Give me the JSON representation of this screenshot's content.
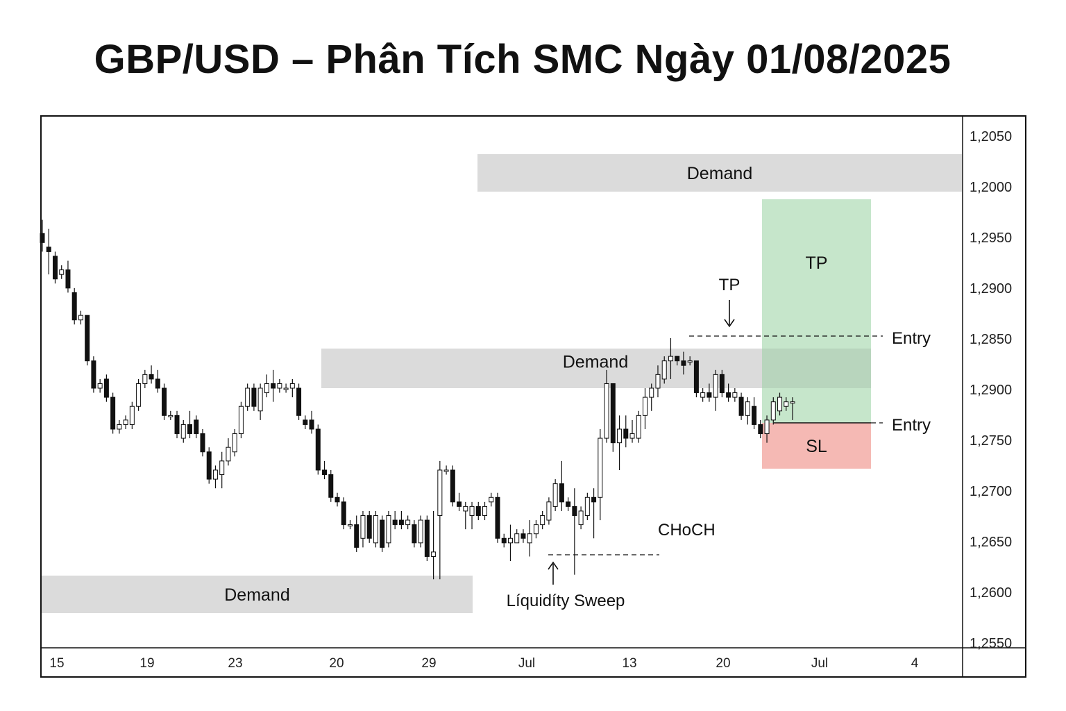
{
  "chart_data": {
    "type": "candlestick",
    "title": "GBP/USD – Phân Tích SMC Ngày 01/08/2025",
    "y_axis": {
      "ticks": [
        "1,2050",
        "1,2000",
        "1,2950",
        "1,2900",
        "1,2850",
        "1,2900",
        "1,2750",
        "1,2700",
        "1,2650",
        "1,2600",
        "1,2550"
      ],
      "scale": [
        1.2545,
        1.206
      ],
      "ylim": [
        1.2545,
        1.3102
      ]
    },
    "x_axis": {
      "ticks": [
        "15",
        "19",
        "23",
        "20",
        "29",
        "Jul",
        "13",
        "20",
        "Jul",
        "4"
      ]
    },
    "grid": false,
    "candles": [
      [
        1.2995,
        1.301,
        1.2975,
        1.2985
      ],
      [
        1.298,
        1.3,
        1.295,
        1.2975
      ],
      [
        1.297,
        1.2975,
        1.294,
        1.2945
      ],
      [
        1.295,
        1.296,
        1.2945,
        1.2955
      ],
      [
        1.2955,
        1.2965,
        1.293,
        1.2935
      ],
      [
        1.293,
        1.2935,
        1.2895,
        1.29
      ],
      [
        1.29,
        1.291,
        1.2895,
        1.2905
      ],
      [
        1.2905,
        1.2905,
        1.285,
        1.2855
      ],
      [
        1.2855,
        1.286,
        1.282,
        1.2825
      ],
      [
        1.2825,
        1.2835,
        1.282,
        1.283
      ],
      [
        1.2835,
        1.284,
        1.281,
        1.2815
      ],
      [
        1.2815,
        1.282,
        1.2775,
        1.278
      ],
      [
        1.278,
        1.279,
        1.2775,
        1.2785
      ],
      [
        1.2785,
        1.2795,
        1.278,
        1.279
      ],
      [
        1.2785,
        1.281,
        1.278,
        1.2805
      ],
      [
        1.2805,
        1.2835,
        1.28,
        1.283
      ],
      [
        1.283,
        1.2845,
        1.2825,
        1.284
      ],
      [
        1.284,
        1.285,
        1.283,
        1.2835
      ],
      [
        1.2835,
        1.2845,
        1.282,
        1.2825
      ],
      [
        1.2825,
        1.283,
        1.279,
        1.2795
      ],
      [
        1.2795,
        1.28,
        1.279,
        1.2795
      ],
      [
        1.2795,
        1.28,
        1.277,
        1.2775
      ],
      [
        1.277,
        1.279,
        1.2765,
        1.2785
      ],
      [
        1.2785,
        1.28,
        1.277,
        1.2775
      ],
      [
        1.279,
        1.2795,
        1.277,
        1.2775
      ],
      [
        1.2775,
        1.278,
        1.275,
        1.2755
      ],
      [
        1.2755,
        1.276,
        1.272,
        1.2725
      ],
      [
        1.2725,
        1.274,
        1.2715,
        1.2735
      ],
      [
        1.273,
        1.2755,
        1.2715,
        1.2745
      ],
      [
        1.2745,
        1.277,
        1.274,
        1.276
      ],
      [
        1.2755,
        1.278,
        1.275,
        1.2775
      ],
      [
        1.2775,
        1.281,
        1.277,
        1.2805
      ],
      [
        1.2805,
        1.283,
        1.28,
        1.2825
      ],
      [
        1.2825,
        1.283,
        1.28,
        1.2805
      ],
      [
        1.28,
        1.283,
        1.279,
        1.2825
      ],
      [
        1.282,
        1.284,
        1.2815,
        1.283
      ],
      [
        1.283,
        1.2845,
        1.281,
        1.2825
      ],
      [
        1.2825,
        1.2835,
        1.282,
        1.283
      ],
      [
        1.2825,
        1.283,
        1.282,
        1.2825
      ],
      [
        1.2825,
        1.2835,
        1.2815,
        1.283
      ],
      [
        1.2825,
        1.283,
        1.279,
        1.2795
      ],
      [
        1.279,
        1.2795,
        1.278,
        1.2785
      ],
      [
        1.279,
        1.28,
        1.2775,
        1.278
      ],
      [
        1.278,
        1.2785,
        1.273,
        1.2735
      ],
      [
        1.2735,
        1.2745,
        1.2725,
        1.273
      ],
      [
        1.273,
        1.2735,
        1.27,
        1.2705
      ],
      [
        1.2705,
        1.271,
        1.2695,
        1.27
      ],
      [
        1.27,
        1.2705,
        1.267,
        1.2675
      ],
      [
        1.2675,
        1.268,
        1.267,
        1.2675
      ],
      [
        1.2675,
        1.2685,
        1.2645,
        1.265
      ],
      [
        1.266,
        1.269,
        1.265,
        1.2685
      ],
      [
        1.2685,
        1.269,
        1.2655,
        1.266
      ],
      [
        1.2655,
        1.269,
        1.265,
        1.2685
      ],
      [
        1.268,
        1.2685,
        1.2645,
        1.265
      ],
      [
        1.2655,
        1.269,
        1.265,
        1.2685
      ],
      [
        1.268,
        1.269,
        1.267,
        1.2675
      ],
      [
        1.268,
        1.269,
        1.267,
        1.2675
      ],
      [
        1.2675,
        1.2685,
        1.267,
        1.268
      ],
      [
        1.2675,
        1.268,
        1.265,
        1.2655
      ],
      [
        1.2655,
        1.2685,
        1.265,
        1.268
      ],
      [
        1.268,
        1.2685,
        1.2635,
        1.264
      ],
      [
        1.264,
        1.269,
        1.2615,
        1.2645
      ],
      [
        1.2685,
        1.2745,
        1.2615,
        1.2735
      ],
      [
        1.2735,
        1.274,
        1.273,
        1.2735
      ],
      [
        1.2735,
        1.274,
        1.2695,
        1.27
      ],
      [
        1.27,
        1.271,
        1.269,
        1.2695
      ],
      [
        1.269,
        1.27,
        1.267,
        1.2695
      ],
      [
        1.2685,
        1.27,
        1.267,
        1.2695
      ],
      [
        1.2695,
        1.27,
        1.268,
        1.2685
      ],
      [
        1.2685,
        1.27,
        1.268,
        1.2695
      ],
      [
        1.27,
        1.271,
        1.2695,
        1.2705
      ],
      [
        1.2705,
        1.271,
        1.2655,
        1.266
      ],
      [
        1.266,
        1.2665,
        1.265,
        1.2655
      ],
      [
        1.2655,
        1.2675,
        1.2635,
        1.266
      ],
      [
        1.2655,
        1.267,
        1.2655,
        1.2665
      ],
      [
        1.2665,
        1.267,
        1.2655,
        1.266
      ],
      [
        1.2655,
        1.268,
        1.264,
        1.2665
      ],
      [
        1.2665,
        1.268,
        1.266,
        1.2675
      ],
      [
        1.2675,
        1.269,
        1.267,
        1.2685
      ],
      [
        1.268,
        1.2705,
        1.2675,
        1.27
      ],
      [
        1.2695,
        1.2725,
        1.269,
        1.272
      ],
      [
        1.272,
        1.2745,
        1.269,
        1.27
      ],
      [
        1.27,
        1.2705,
        1.269,
        1.2695
      ],
      [
        1.2695,
        1.2715,
        1.262,
        1.2685
      ],
      [
        1.2675,
        1.2695,
        1.267,
        1.269
      ],
      [
        1.2685,
        1.271,
        1.268,
        1.2705
      ],
      [
        1.2705,
        1.2715,
        1.266,
        1.27
      ],
      [
        1.2705,
        1.278,
        1.268,
        1.277
      ],
      [
        1.277,
        1.2845,
        1.2765,
        1.283
      ],
      [
        1.283,
        1.283,
        1.2755,
        1.2765
      ],
      [
        1.2765,
        1.2795,
        1.2735,
        1.278
      ],
      [
        1.278,
        1.2795,
        1.276,
        1.277
      ],
      [
        1.277,
        1.279,
        1.2765,
        1.2775
      ],
      [
        1.277,
        1.28,
        1.2765,
        1.2795
      ],
      [
        1.2795,
        1.2825,
        1.278,
        1.2815
      ],
      [
        1.2815,
        1.283,
        1.28,
        1.2825
      ],
      [
        1.2825,
        1.285,
        1.2815,
        1.284
      ],
      [
        1.2835,
        1.286,
        1.283,
        1.2855
      ],
      [
        1.2855,
        1.288,
        1.2835,
        1.286
      ],
      [
        1.286,
        1.286,
        1.285,
        1.2855
      ],
      [
        1.2855,
        1.2865,
        1.284,
        1.285
      ],
      [
        1.2855,
        1.286,
        1.285,
        1.2855
      ],
      [
        1.2855,
        1.2855,
        1.2815,
        1.282
      ],
      [
        1.2815,
        1.2825,
        1.281,
        1.282
      ],
      [
        1.282,
        1.283,
        1.281,
        1.2815
      ],
      [
        1.2815,
        1.2845,
        1.28,
        1.284
      ],
      [
        1.284,
        1.2845,
        1.2815,
        1.282
      ],
      [
        1.282,
        1.283,
        1.281,
        1.2815
      ],
      [
        1.2815,
        1.2825,
        1.281,
        1.282
      ],
      [
        1.2815,
        1.282,
        1.279,
        1.2795
      ],
      [
        1.2795,
        1.2815,
        1.2785,
        1.281
      ],
      [
        1.2805,
        1.2815,
        1.278,
        1.2785
      ],
      [
        1.2785,
        1.279,
        1.277,
        1.2775
      ],
      [
        1.2775,
        1.2795,
        1.2765,
        1.279
      ],
      [
        1.279,
        1.2815,
        1.2785,
        1.281
      ],
      [
        1.28,
        1.282,
        1.2795,
        1.2815
      ],
      [
        1.2805,
        1.2815,
        1.28,
        1.281
      ],
      [
        1.281,
        1.2815,
        1.279,
        1.281
      ]
    ],
    "zones": [
      {
        "label": "Demand",
        "top": 1.2035,
        "bottom": 1.2,
        "kind": "demand"
      },
      {
        "label": "Demand",
        "top": 1.2842,
        "bottom": 1.2804,
        "kind": "demand"
      },
      {
        "label": "Demand",
        "top": 1.2618,
        "bottom": 1.2581,
        "kind": "demand"
      },
      {
        "label": "TP",
        "top": 1.299,
        "bottom": 1.2765,
        "kind": "tp"
      },
      {
        "label": "SL",
        "top": 1.2765,
        "bottom": 1.272,
        "kind": "sl"
      }
    ],
    "annotations": [
      {
        "text": "TP",
        "kind": "arrow-down"
      },
      {
        "text": "Entry",
        "level": 1.2851
      },
      {
        "text": "Entry",
        "level": 1.2765
      },
      {
        "text": "CHoCH",
        "level": 1.2637
      },
      {
        "text": "Líquidíty Sweep",
        "kind": "arrow-up"
      }
    ],
    "colors": {
      "bull_candle": "#ffffff",
      "bear_candle": "#111111",
      "demand_zone": "#d9d9d9",
      "tp_zone": "#c6e6cb",
      "sl_zone": "#f5b9b4"
    }
  }
}
